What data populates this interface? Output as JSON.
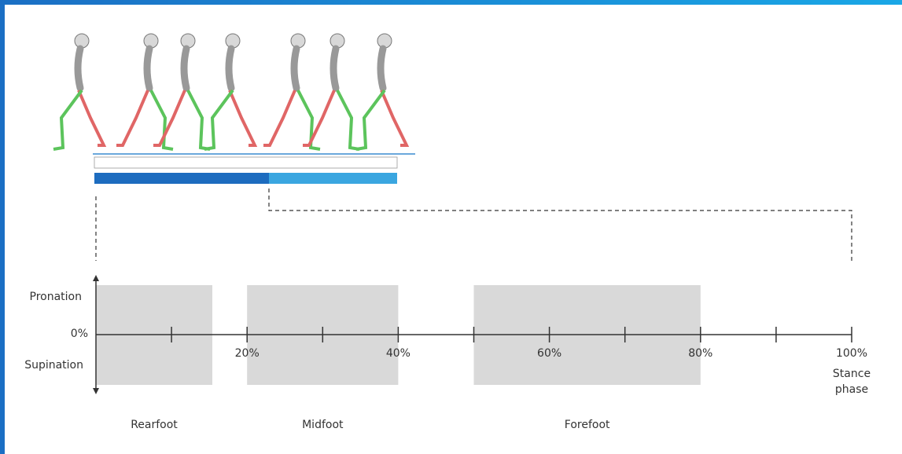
{
  "y_axis": {
    "upper": "Pronation",
    "zero": "0%",
    "lower": "Supination"
  },
  "x_ticks": [
    "20%",
    "40%",
    "60%",
    "80%",
    "100%"
  ],
  "x_axis_label": "Stance phase",
  "regions": [
    "Rearfoot",
    "Midfoot",
    "Forefoot"
  ]
}
